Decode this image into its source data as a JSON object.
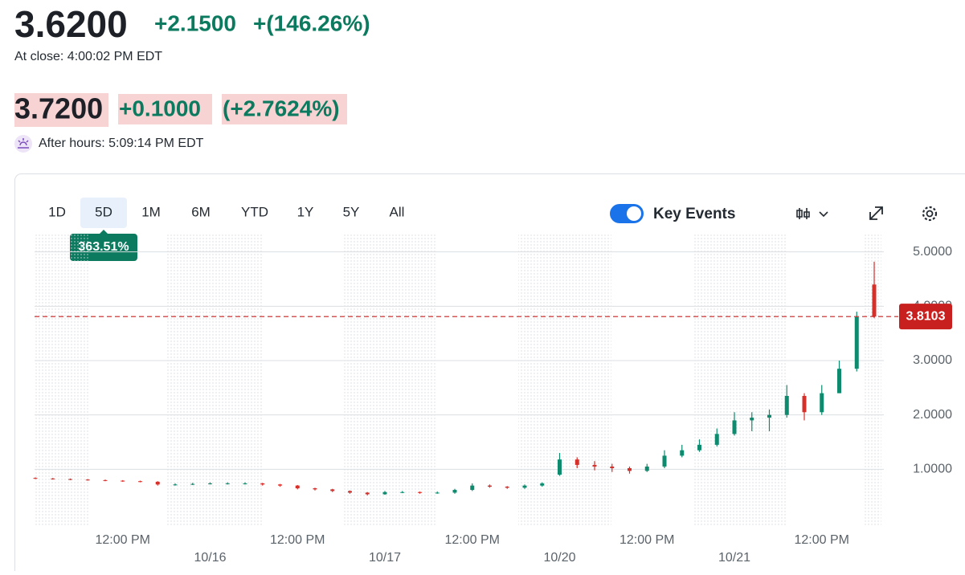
{
  "header": {
    "price": "3.6200",
    "change": "+2.1500",
    "change_pct": "+(146.26%)",
    "close_time": "At close: 4:00:02 PM EDT",
    "ah_price": "3.7200",
    "ah_change": "+0.1000",
    "ah_change_pct": "(+2.7624%)",
    "ah_time": "After hours: 5:09:14 PM EDT"
  },
  "toolbar": {
    "ranges": [
      "1D",
      "5D",
      "1M",
      "6M",
      "YTD",
      "1Y",
      "5Y",
      "All"
    ],
    "selected_range": "5D",
    "range_badge": "363.51%",
    "key_events": {
      "label": "Key Events",
      "enabled": true
    }
  },
  "chart_data": {
    "type": "candlestick",
    "categories": [
      null,
      null,
      null,
      null,
      null,
      "12:00 PM",
      null,
      null,
      null,
      null,
      null,
      null,
      null,
      null,
      null,
      "12:00 PM",
      null,
      null,
      null,
      null,
      null,
      null,
      null,
      null,
      null,
      "12:00 PM",
      null,
      null,
      null,
      null,
      null,
      null,
      null,
      null,
      null,
      "12:00 PM",
      null,
      null,
      null,
      null,
      null,
      null,
      null,
      null,
      null,
      "12:00 PM",
      null,
      null,
      null
    ],
    "date_labels": [
      "10/16",
      "10/17",
      "10/20",
      "10/21"
    ],
    "open": [
      0.84,
      0.83,
      0.82,
      0.81,
      0.8,
      0.79,
      0.78,
      0.77,
      0.72,
      0.72,
      0.73,
      0.74,
      0.74,
      0.74,
      0.72,
      0.7,
      0.65,
      0.63,
      0.6,
      0.57,
      0.54,
      0.58,
      0.58,
      0.57,
      0.57,
      0.62,
      0.7,
      0.68,
      0.66,
      0.7,
      0.9,
      1.18,
      1.08,
      1.05,
      1.02,
      0.97,
      1.05,
      1.25,
      1.35,
      1.45,
      1.65,
      1.9,
      1.95,
      2.0,
      2.35,
      2.05,
      2.4,
      2.85,
      4.4
    ],
    "high": [
      0.85,
      0.84,
      0.83,
      0.82,
      0.81,
      0.8,
      0.79,
      0.78,
      0.74,
      0.75,
      0.76,
      0.76,
      0.76,
      0.75,
      0.73,
      0.71,
      0.66,
      0.64,
      0.61,
      0.58,
      0.6,
      0.6,
      0.59,
      0.59,
      0.64,
      0.74,
      0.72,
      0.69,
      0.72,
      0.76,
      1.3,
      1.22,
      1.15,
      1.1,
      1.05,
      1.1,
      1.35,
      1.45,
      1.55,
      1.75,
      2.05,
      2.05,
      2.1,
      2.55,
      2.4,
      2.55,
      3.0,
      3.9,
      4.82
    ],
    "low": [
      0.82,
      0.81,
      0.8,
      0.79,
      0.78,
      0.77,
      0.76,
      0.7,
      0.7,
      0.71,
      0.72,
      0.72,
      0.72,
      0.7,
      0.68,
      0.63,
      0.61,
      0.58,
      0.55,
      0.52,
      0.53,
      0.56,
      0.55,
      0.55,
      0.55,
      0.6,
      0.66,
      0.64,
      0.64,
      0.68,
      0.88,
      1.02,
      0.98,
      0.95,
      0.92,
      0.95,
      1.02,
      1.22,
      1.32,
      1.42,
      1.62,
      1.7,
      1.7,
      1.95,
      1.9,
      2.0,
      2.4,
      2.8,
      3.78
    ],
    "close": [
      0.83,
      0.82,
      0.81,
      0.8,
      0.79,
      0.78,
      0.77,
      0.72,
      0.72,
      0.73,
      0.74,
      0.74,
      0.74,
      0.72,
      0.7,
      0.65,
      0.63,
      0.6,
      0.57,
      0.54,
      0.58,
      0.58,
      0.57,
      0.57,
      0.62,
      0.7,
      0.68,
      0.66,
      0.7,
      0.74,
      1.18,
      1.08,
      1.05,
      1.02,
      0.97,
      1.05,
      1.25,
      1.35,
      1.45,
      1.65,
      1.9,
      1.95,
      2.0,
      2.35,
      2.05,
      2.4,
      2.85,
      3.8,
      3.81
    ],
    "up_color": "#0e8a6e",
    "down_color": "#d6302b",
    "ylim": [
      0,
      5.35
    ],
    "yticks": [
      {
        "value": 1,
        "label": "1.0000"
      },
      {
        "value": 2,
        "label": "2.0000"
      },
      {
        "value": 3,
        "label": "3.0000"
      },
      {
        "value": 4,
        "label": "4.0000"
      },
      {
        "value": 5,
        "label": "5.0000"
      }
    ],
    "grid": true,
    "last_price": {
      "value": 3.8103,
      "label": "3.8103",
      "color": "#c8201e"
    }
  }
}
